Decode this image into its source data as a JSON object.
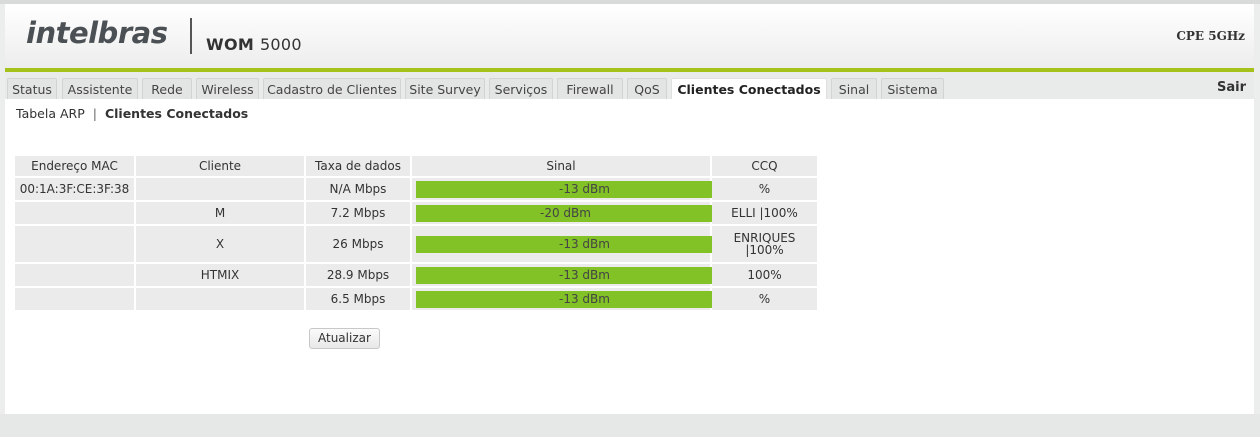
{
  "brand": {
    "logo": "intelbras",
    "product_name": "WOM",
    "product_number": "5000",
    "model": "CPE 5GHz"
  },
  "tabs": [
    {
      "label": "Status"
    },
    {
      "label": "Assistente"
    },
    {
      "label": "Rede"
    },
    {
      "label": "Wireless"
    },
    {
      "label": "Cadastro de Clientes"
    },
    {
      "label": "Site Survey"
    },
    {
      "label": "Serviços"
    },
    {
      "label": "Firewall"
    },
    {
      "label": "QoS"
    },
    {
      "label": "Clientes Conectados",
      "active": true
    },
    {
      "label": "Sinal"
    },
    {
      "label": "Sistema"
    }
  ],
  "logout_label": "Sair",
  "subnav": {
    "item1": "Tabela ARP",
    "separator": "|",
    "item2": "Clientes Conectados"
  },
  "table": {
    "headers": {
      "mac": "Endereço MAC",
      "client": "Cliente",
      "rate": "Taxa de dados",
      "signal": "Sinal",
      "ccq": "CCQ"
    },
    "rows": [
      {
        "mac": "00:1A:3F:CE:3F:38",
        "client": "",
        "rate": "N/A Mbps",
        "signal": "-13 dBm",
        "signal_fill": 0.905,
        "ccq_line1": "%",
        "ccq_line2": ""
      },
      {
        "mac": "",
        "client": "M",
        "rate": "7.2 Mbps",
        "signal": "-20 dBm",
        "signal_fill": 0.805,
        "ccq_line1": "ELLI |100%",
        "ccq_line2": ""
      },
      {
        "mac": "",
        "client": "X",
        "rate": "26 Mbps",
        "signal": "-13 dBm",
        "signal_fill": 0.905,
        "ccq_line1": "ENRIQUES",
        "ccq_line2": "|100%"
      },
      {
        "mac": "",
        "client": "HTMIX",
        "rate": "28.9 Mbps",
        "signal": "-13 dBm",
        "signal_fill": 0.905,
        "ccq_line1": "100%",
        "ccq_line2": ""
      },
      {
        "mac": "",
        "client": "",
        "rate": "6.5 Mbps",
        "signal": "-13 dBm",
        "signal_fill": 0.905,
        "ccq_line1": "%",
        "ccq_line2": ""
      }
    ]
  },
  "refresh_button": "Atualizar",
  "colors": {
    "accent_green": "#a5c21a",
    "signal_green": "#82c227"
  }
}
